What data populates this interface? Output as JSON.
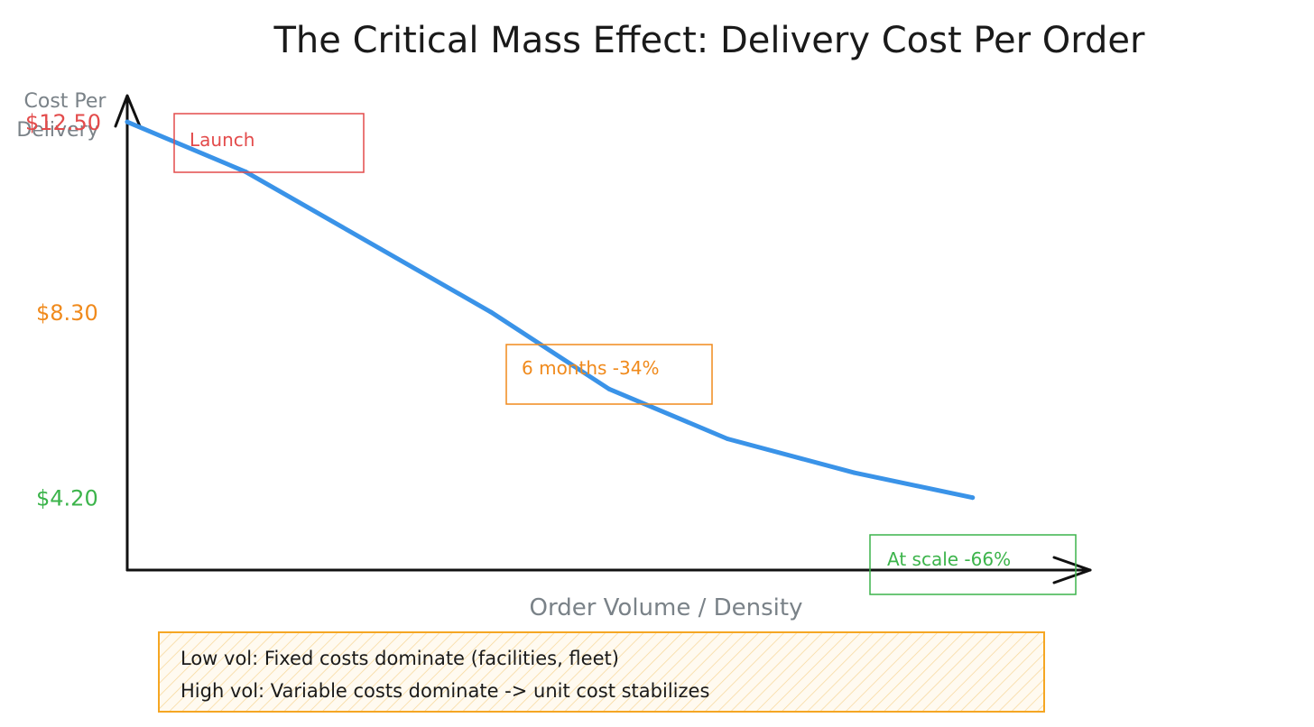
{
  "chart_data": {
    "type": "line",
    "title": "The Critical Mass Effect: Delivery Cost Per Order",
    "ylabel_lines": [
      "Cost Per",
      "Delivery"
    ],
    "xlabel": "Order Volume / Density",
    "ylim": [
      2.6,
      13.4
    ],
    "xlim": [
      0,
      1.2
    ],
    "series": [
      {
        "name": "Delivery cost per order",
        "color": "#3a93e8",
        "points": [
          {
            "x": 0.0,
            "y": 12.5
          },
          {
            "x": 0.14,
            "y": 11.4
          },
          {
            "x": 0.43,
            "y": 8.3
          },
          {
            "x": 0.57,
            "y": 6.6
          },
          {
            "x": 0.71,
            "y": 5.5
          },
          {
            "x": 0.86,
            "y": 4.75
          },
          {
            "x": 1.0,
            "y": 4.2
          }
        ]
      }
    ],
    "y_ticks": [
      {
        "value": 12.5,
        "label": "$12.50",
        "color": "#e34b4b"
      },
      {
        "value": 8.3,
        "label": "$8.30",
        "color": "#f08a1c"
      },
      {
        "value": 4.2,
        "label": "$4.20",
        "color": "#3cb44b"
      }
    ],
    "annotations": [
      {
        "name": "launch",
        "label": "Launch",
        "color": "#e34b4b"
      },
      {
        "name": "six-months",
        "label": "6 months -34%",
        "color": "#f08a1c"
      },
      {
        "name": "at-scale",
        "label": "At scale -66%",
        "color": "#3cb44b"
      }
    ],
    "note": {
      "lines": [
        "Low vol: Fixed costs dominate (facilities, fleet)",
        "High vol: Variable costs dominate -> unit cost stabilizes"
      ],
      "border_color": "#f5a623"
    }
  }
}
